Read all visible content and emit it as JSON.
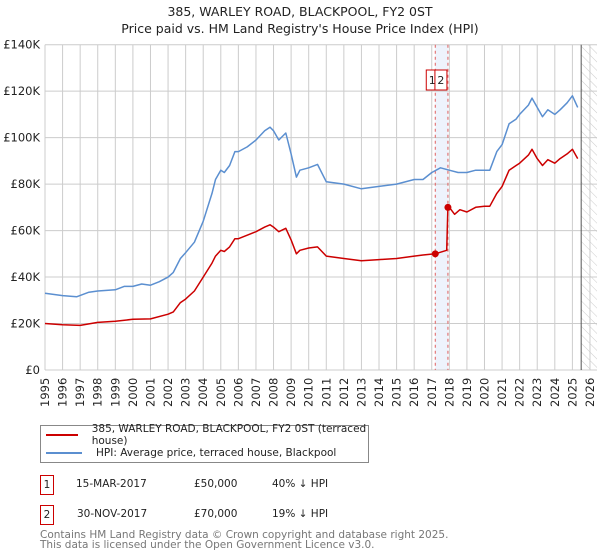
{
  "title": "385, WARLEY ROAD, BLACKPOOL, FY2 0ST",
  "subtitle": "Price paid vs. HM Land Registry's House Price Index (HPI)",
  "chart_data": {
    "type": "line",
    "title": "385, WARLEY ROAD, BLACKPOOL, FY2 0ST",
    "subtitle": "Price paid vs. HM Land Registry's House Price Index (HPI)",
    "xlim": [
      1995,
      2026.4
    ],
    "ylim": [
      0,
      140000
    ],
    "x_ticks": [
      "1995",
      "1996",
      "1997",
      "1998",
      "1999",
      "2000",
      "2001",
      "2002",
      "2003",
      "2004",
      "2005",
      "2006",
      "2007",
      "2008",
      "2009",
      "2010",
      "2011",
      "2012",
      "2013",
      "2014",
      "2015",
      "2016",
      "2017",
      "2018",
      "2019",
      "2020",
      "2021",
      "2022",
      "2023",
      "2024",
      "2025",
      "2026"
    ],
    "y_ticks": [
      {
        "v": 0,
        "label": "£0"
      },
      {
        "v": 20000,
        "label": "£20K"
      },
      {
        "v": 40000,
        "label": "£40K"
      },
      {
        "v": 60000,
        "label": "£60K"
      },
      {
        "v": 80000,
        "label": "£80K"
      },
      {
        "v": 100000,
        "label": "£100K"
      },
      {
        "v": 120000,
        "label": "£120K"
      },
      {
        "v": 140000,
        "label": "£140K"
      }
    ],
    "grid": true,
    "data_end": 2025.5,
    "series": [
      {
        "name": "385, WARLEY ROAD, BLACKPOOL, FY2 0ST (terraced house)",
        "color": "#cc0000",
        "x": [
          1995,
          1996,
          1997,
          1998,
          1999,
          2000,
          2001,
          2002,
          2002.3,
          2002.7,
          2003,
          2003.5,
          2004,
          2004.5,
          2004.7,
          2005,
          2005.2,
          2005.5,
          2005.8,
          2006,
          2006.5,
          2007,
          2007.5,
          2007.8,
          2008,
          2008.3,
          2008.7,
          2009,
          2009.3,
          2009.5,
          2010,
          2010.5,
          2011,
          2012,
          2013,
          2014,
          2015,
          2016,
          2016.5,
          2017.2,
          2017.85,
          2017.92,
          2018,
          2018.3,
          2018.6,
          2019,
          2019.5,
          2020,
          2020.3,
          2020.7,
          2021,
          2021.4,
          2021.8,
          2022,
          2022.5,
          2022.7,
          2023,
          2023.3,
          2023.6,
          2024,
          2024.3,
          2024.7,
          2025,
          2025.3
        ],
        "y": [
          20,
          19.5,
          19.2,
          20.5,
          21,
          21.8,
          22,
          24,
          25,
          29,
          30.5,
          34,
          40,
          46,
          49,
          51.5,
          51,
          53,
          56.5,
          56.5,
          58,
          59.5,
          61.5,
          62.5,
          61.5,
          59.5,
          61,
          56,
          50,
          51.5,
          52.5,
          53,
          49,
          48,
          47,
          47.5,
          48,
          49,
          49.5,
          50,
          51.5,
          70,
          70,
          67,
          69,
          68,
          70,
          70.5,
          70.5,
          76,
          79,
          86,
          88,
          89,
          92.5,
          95,
          91,
          88,
          90.5,
          89,
          91,
          93,
          95,
          91
        ]
      },
      {
        "name": "HPI: Average price, terraced house, Blackpool",
        "color": "#5b8fd0",
        "x": [
          1995,
          1996,
          1996.8,
          1997.5,
          1998,
          1999,
          1999.5,
          2000,
          2000.5,
          2001,
          2001.5,
          2002,
          2002.3,
          2002.7,
          2003,
          2003.5,
          2004,
          2004.5,
          2004.7,
          2005,
          2005.2,
          2005.5,
          2005.8,
          2006,
          2006.5,
          2007,
          2007.5,
          2007.8,
          2008,
          2008.3,
          2008.7,
          2009,
          2009.3,
          2009.5,
          2010,
          2010.5,
          2011,
          2012,
          2013,
          2014,
          2015,
          2016,
          2016.5,
          2017,
          2017.5,
          2018,
          2018.5,
          2019,
          2019.5,
          2020,
          2020.3,
          2020.7,
          2021,
          2021.4,
          2021.8,
          2022,
          2022.5,
          2022.7,
          2023,
          2023.3,
          2023.6,
          2024,
          2024.3,
          2024.7,
          2025,
          2025.3
        ],
        "y": [
          33,
          32,
          31.5,
          33.5,
          34,
          34.5,
          36,
          36,
          37,
          36.5,
          38,
          40,
          42,
          48,
          50.5,
          55,
          64,
          76,
          82,
          86,
          85,
          88,
          94,
          94,
          96,
          99,
          103,
          104.5,
          103,
          99,
          102,
          93,
          83,
          86,
          87,
          88.5,
          81,
          80,
          78,
          79,
          80,
          82,
          82,
          85,
          87,
          86,
          85,
          85,
          86,
          86,
          86,
          94,
          97,
          106,
          108,
          110,
          114,
          117,
          113,
          109,
          112,
          110,
          112,
          115,
          118,
          113
        ]
      }
    ],
    "y_units_note": "y values in £ thousands",
    "transactions": [
      {
        "label": "1",
        "x": 2017.2,
        "date": "15-MAR-2017",
        "price": "£50,000",
        "value": 50,
        "hpi": "40% ↓ HPI"
      },
      {
        "label": "2",
        "x": 2017.92,
        "date": "30-NOV-2017",
        "price": "£70,000",
        "value": 70,
        "hpi": "19% ↓ HPI"
      }
    ]
  },
  "footer": [
    "Contains HM Land Registry data © Crown copyright and database right 2025.",
    "This data is licensed under the Open Government Licence v3.0."
  ]
}
